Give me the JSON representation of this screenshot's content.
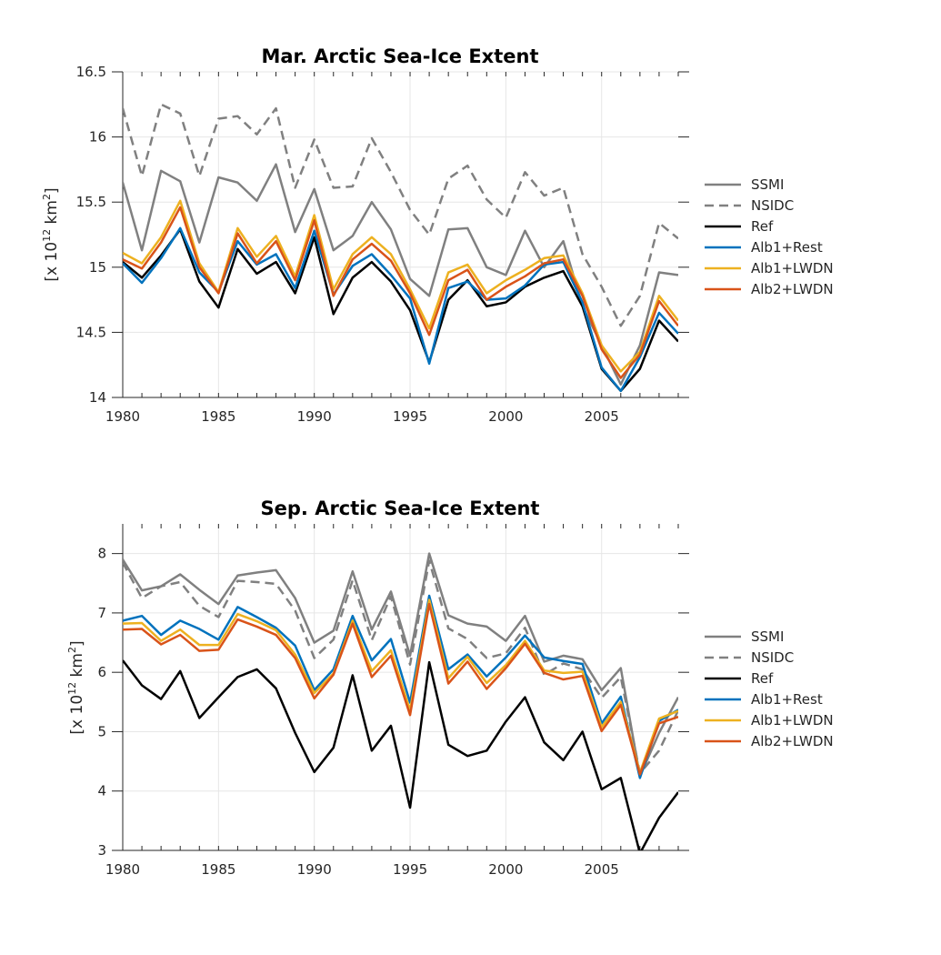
{
  "chart_data": [
    {
      "type": "line",
      "title": "Mar. Arctic Sea-Ice Extent",
      "ylabel": "[x 10",
      "ylabel_exponent": "12",
      "ylabel_unit": " km",
      "ylabel_unit_exponent": "2",
      "ylabel_close": "]",
      "xlim": [
        1980,
        2009
      ],
      "ylim": [
        14,
        16.5
      ],
      "xticks": [
        1980,
        1985,
        1990,
        1995,
        2000,
        2005
      ],
      "yticks": [
        14,
        14.5,
        15,
        15.5,
        16,
        16.5
      ],
      "grid": true,
      "legend_position": "right",
      "x": [
        1980,
        1981,
        1982,
        1983,
        1984,
        1985,
        1986,
        1987,
        1988,
        1989,
        1990,
        1991,
        1992,
        1993,
        1994,
        1995,
        1996,
        1997,
        1998,
        1999,
        2000,
        2001,
        2002,
        2003,
        2004,
        2005,
        2006,
        2007,
        2008,
        2009
      ],
      "series": [
        {
          "name": "SSMI",
          "color": "#808080",
          "dash": "solid",
          "values": [
            15.65,
            15.13,
            15.74,
            15.66,
            15.19,
            15.69,
            15.65,
            15.51,
            15.79,
            15.27,
            15.6,
            15.13,
            15.24,
            15.5,
            15.29,
            14.91,
            14.78,
            15.29,
            15.3,
            15.0,
            14.94,
            15.28,
            15.0,
            15.2,
            14.7,
            14.4,
            14.1,
            14.4,
            14.96,
            14.94
          ]
        },
        {
          "name": "NSIDC",
          "color": "#808080",
          "dash": "dashed",
          "values": [
            16.22,
            15.7,
            16.25,
            16.18,
            15.7,
            16.14,
            16.16,
            16.02,
            16.22,
            15.61,
            15.98,
            15.61,
            15.62,
            15.99,
            15.73,
            15.44,
            15.25,
            15.68,
            15.78,
            15.52,
            15.38,
            15.73,
            15.55,
            15.61,
            15.1,
            14.85,
            14.55,
            14.78,
            15.34,
            15.22
          ]
        },
        {
          "name": "Ref",
          "color": "#000000",
          "dash": "solid",
          "values": [
            15.04,
            14.92,
            15.09,
            15.29,
            14.89,
            14.69,
            15.14,
            14.95,
            15.04,
            14.8,
            15.23,
            14.64,
            14.92,
            15.04,
            14.89,
            14.67,
            14.27,
            14.75,
            14.9,
            14.7,
            14.73,
            14.85,
            14.92,
            14.97,
            14.7,
            14.22,
            14.05,
            14.22,
            14.59,
            14.43
          ]
        },
        {
          "name": "Alb1+Rest",
          "color": "#0072BD",
          "dash": "solid",
          "values": [
            15.03,
            14.88,
            15.07,
            15.3,
            14.96,
            14.81,
            15.2,
            15.02,
            15.1,
            14.84,
            15.28,
            14.79,
            15.01,
            15.1,
            14.94,
            14.76,
            14.26,
            14.84,
            14.89,
            14.75,
            14.76,
            14.86,
            15.02,
            15.04,
            14.73,
            14.23,
            14.05,
            14.31,
            14.65,
            14.49
          ]
        },
        {
          "name": "Alb1+LWDN",
          "color": "#EDB120",
          "dash": "solid",
          "values": [
            15.11,
            15.03,
            15.23,
            15.51,
            15.03,
            14.81,
            15.3,
            15.08,
            15.24,
            14.93,
            15.4,
            14.83,
            15.1,
            15.23,
            15.1,
            14.83,
            14.53,
            14.96,
            15.02,
            14.8,
            14.9,
            14.98,
            15.07,
            15.09,
            14.8,
            14.4,
            14.2,
            14.35,
            14.78,
            14.59
          ]
        },
        {
          "name": "Alb2+LWDN",
          "color": "#D95319",
          "dash": "solid",
          "values": [
            15.06,
            14.99,
            15.19,
            15.46,
            15.0,
            14.8,
            15.26,
            15.03,
            15.2,
            14.9,
            15.36,
            14.78,
            15.06,
            15.18,
            15.05,
            14.8,
            14.48,
            14.9,
            14.98,
            14.75,
            14.85,
            14.93,
            15.03,
            15.06,
            14.78,
            14.37,
            14.15,
            14.33,
            14.74,
            14.55
          ]
        }
      ]
    },
    {
      "type": "line",
      "title": "Sep. Arctic Sea-Ice Extent",
      "ylabel": "[x 10",
      "ylabel_exponent": "12",
      "ylabel_unit": " km",
      "ylabel_unit_exponent": "2",
      "ylabel_close": "]",
      "xlim": [
        1980,
        2009
      ],
      "ylim": [
        3,
        8.5
      ],
      "xticks": [
        1980,
        1985,
        1990,
        1995,
        2000,
        2005
      ],
      "yticks": [
        3,
        4,
        5,
        6,
        7,
        8
      ],
      "grid": true,
      "legend_position": "right",
      "x": [
        1980,
        1981,
        1982,
        1983,
        1984,
        1985,
        1986,
        1987,
        1988,
        1989,
        1990,
        1991,
        1992,
        1993,
        1994,
        1995,
        1996,
        1997,
        1998,
        1999,
        2000,
        2001,
        2002,
        2003,
        2004,
        2005,
        2006,
        2007,
        2008,
        2009
      ],
      "series": [
        {
          "name": "SSMI",
          "color": "#808080",
          "dash": "solid",
          "values": [
            7.9,
            7.38,
            7.45,
            7.65,
            7.39,
            7.15,
            7.63,
            7.68,
            7.72,
            7.25,
            6.5,
            6.7,
            7.7,
            6.72,
            7.36,
            6.28,
            8.0,
            6.96,
            6.82,
            6.77,
            6.53,
            6.95,
            6.18,
            6.28,
            6.22,
            5.7,
            6.07,
            4.25,
            4.98,
            5.58
          ]
        },
        {
          "name": "NSIDC",
          "color": "#808080",
          "dash": "dashed",
          "values": [
            7.85,
            7.25,
            7.45,
            7.52,
            7.12,
            6.93,
            7.54,
            7.52,
            7.49,
            7.04,
            6.24,
            6.55,
            7.55,
            6.54,
            7.28,
            6.13,
            7.88,
            6.74,
            6.56,
            6.24,
            6.32,
            6.75,
            5.96,
            6.15,
            6.05,
            5.57,
            5.92,
            4.3,
            4.68,
            5.36
          ]
        },
        {
          "name": "Ref",
          "color": "#000000",
          "dash": "solid",
          "values": [
            6.2,
            5.78,
            5.55,
            6.02,
            5.23,
            5.58,
            5.92,
            6.05,
            5.73,
            4.98,
            4.32,
            4.73,
            5.95,
            4.68,
            5.1,
            3.72,
            6.17,
            4.78,
            4.59,
            4.68,
            5.17,
            5.58,
            4.82,
            4.52,
            5.0,
            4.03,
            4.22,
            2.95,
            3.55,
            3.98
          ]
        },
        {
          "name": "Alb1+Rest",
          "color": "#0072BD",
          "dash": "solid",
          "values": [
            6.87,
            6.95,
            6.63,
            6.87,
            6.73,
            6.55,
            7.1,
            6.93,
            6.75,
            6.45,
            5.7,
            6.05,
            6.95,
            6.2,
            6.56,
            5.49,
            7.29,
            6.05,
            6.3,
            5.93,
            6.25,
            6.62,
            6.25,
            6.19,
            6.14,
            5.14,
            5.59,
            4.22,
            5.18,
            5.37
          ]
        },
        {
          "name": "Alb1+LWDN",
          "color": "#EDB120",
          "dash": "solid",
          "values": [
            6.82,
            6.83,
            6.53,
            6.72,
            6.46,
            6.46,
            6.98,
            6.86,
            6.71,
            6.3,
            5.65,
            5.98,
            6.87,
            6.02,
            6.37,
            5.36,
            7.22,
            5.9,
            6.26,
            5.82,
            6.12,
            6.53,
            6.03,
            5.99,
            6.01,
            5.08,
            5.5,
            4.31,
            5.22,
            5.35
          ]
        },
        {
          "name": "Alb2+LWDN",
          "color": "#D95319",
          "dash": "solid",
          "values": [
            6.72,
            6.73,
            6.47,
            6.63,
            6.36,
            6.38,
            6.89,
            6.77,
            6.63,
            6.24,
            5.56,
            5.96,
            6.82,
            5.92,
            6.28,
            5.28,
            7.15,
            5.81,
            6.18,
            5.72,
            6.07,
            6.48,
            5.99,
            5.88,
            5.94,
            5.01,
            5.45,
            4.28,
            5.14,
            5.25
          ]
        }
      ]
    }
  ]
}
